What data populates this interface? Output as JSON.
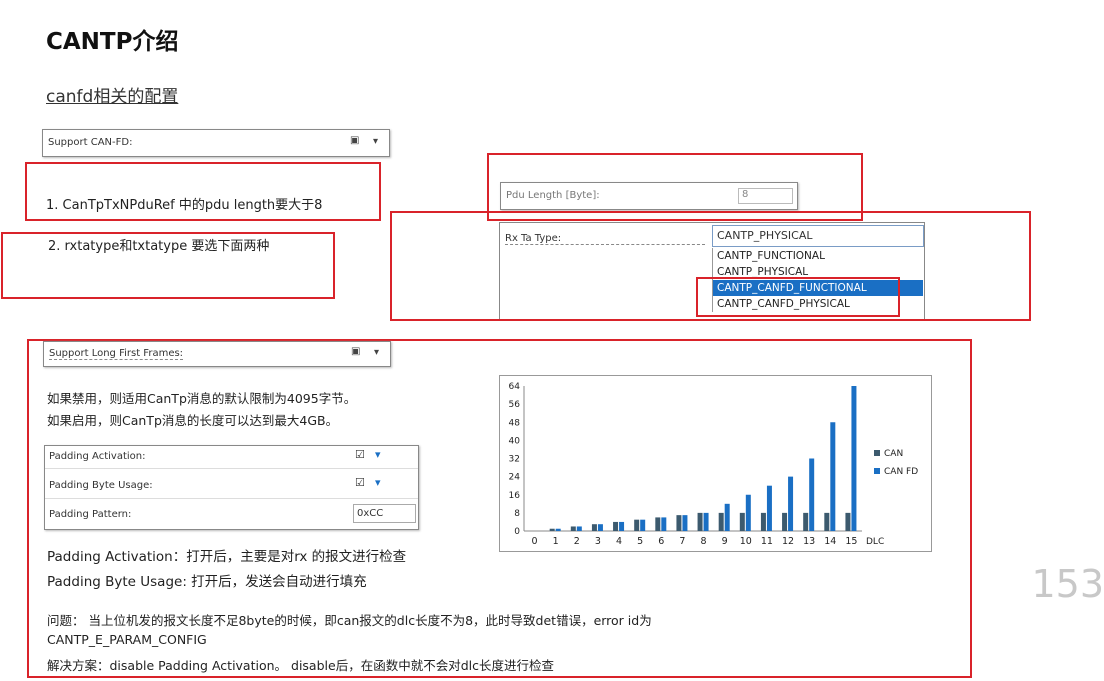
{
  "title": "CANTP介绍",
  "subtitle": "canfd相关的配置",
  "support_canfd": {
    "label": "Support CAN-FD:"
  },
  "note1": "1. CanTpTxNPduRef 中的pdu length要大于8",
  "note2": "2. rxtatype和txtatype 要选下面两种",
  "pdu_length": {
    "label": "Pdu Length [Byte]:",
    "value": "8"
  },
  "ta_type": {
    "label": "Rx Ta Type:",
    "selected": "CANTP_PHYSICAL",
    "options": [
      "CANTP_FUNCTIONAL",
      "CANTP_PHYSICAL",
      "CANTP_CANFD_FUNCTIONAL",
      "CANTP_CANFD_PHYSICAL"
    ],
    "highlighted_index": 2
  },
  "long_ff": {
    "label": "Support Long First Frames:"
  },
  "long_ff_text": [
    "如果禁用，则适用CanTp消息的默认限制为4095字节。",
    "如果启用，则CanTp消息的长度可以达到最大4GB。"
  ],
  "padding": {
    "activation_label": "Padding Activation:",
    "byte_usage_label": "Padding Byte Usage:",
    "pattern_label": "Padding Pattern:",
    "pattern_value": "0xCC"
  },
  "padding_desc": [
    "Padding Activation：打开后，主要是对rx 的报文进行检查",
    "Padding Byte Usage:   打开后，发送会自动进行填充"
  ],
  "issue": [
    "问题：  当上位机发的报文长度不足8byte的时候，即can报文的dlc长度不为8，此时导致det错误，error id为",
    "CANTP_E_PARAM_CONFIG",
    "解决方案：disable Padding Activation。  disable后，在函数中就不会对dlc长度进行检查"
  ],
  "page_number": "153",
  "colors": {
    "red": "#d9232a",
    "can": "#3c5a6e",
    "canfd": "#1a6fc4",
    "select": "#1a6fc4"
  },
  "chart_data": {
    "type": "bar",
    "categories": [
      "0",
      "1",
      "2",
      "3",
      "4",
      "5",
      "6",
      "7",
      "8",
      "9",
      "10",
      "11",
      "12",
      "13",
      "14",
      "15"
    ],
    "series": [
      {
        "name": "CAN",
        "values": [
          0,
          1,
          2,
          3,
          4,
          5,
          6,
          7,
          8,
          8,
          8,
          8,
          8,
          8,
          8,
          8
        ]
      },
      {
        "name": "CAN FD",
        "values": [
          0,
          1,
          2,
          3,
          4,
          5,
          6,
          7,
          8,
          12,
          16,
          20,
          24,
          32,
          48,
          64
        ]
      }
    ],
    "xlabel": "DLC",
    "yticks": [
      "0",
      "8",
      "16",
      "24",
      "32",
      "40",
      "48",
      "56",
      "64"
    ],
    "ylim": [
      0,
      64
    ],
    "legend": "right",
    "grid": false
  }
}
